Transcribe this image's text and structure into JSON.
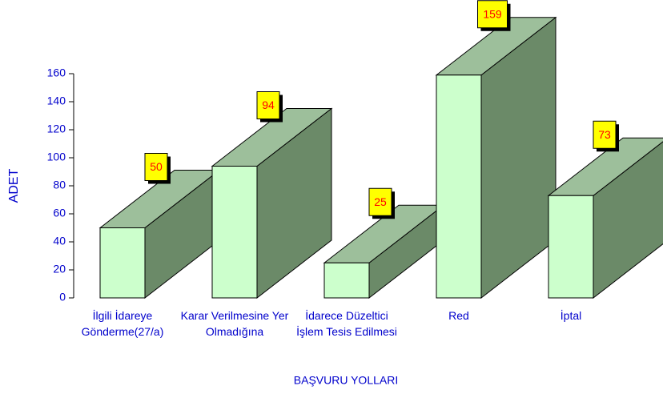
{
  "chart_data": {
    "type": "bar3d",
    "x_label": "BAŞVURU YOLLARI",
    "y_label": "ADET",
    "categories": [
      "İlgili İdareye Gönderme(27/a)",
      "Karar Verilmesine Yer Olmadığına",
      "İdarece Düzeltici İşlem Tesis Edilmesi",
      "Red",
      "İptal"
    ],
    "values": [
      50,
      94,
      25,
      159,
      73
    ],
    "colors": {
      "front": "#ccffcc",
      "top": "#9dbf9b",
      "side": "#6b8a68"
    },
    "ylim": [
      0,
      160
    ],
    "yticks": [
      0,
      20,
      40,
      60,
      80,
      100,
      120,
      140,
      160
    ]
  }
}
